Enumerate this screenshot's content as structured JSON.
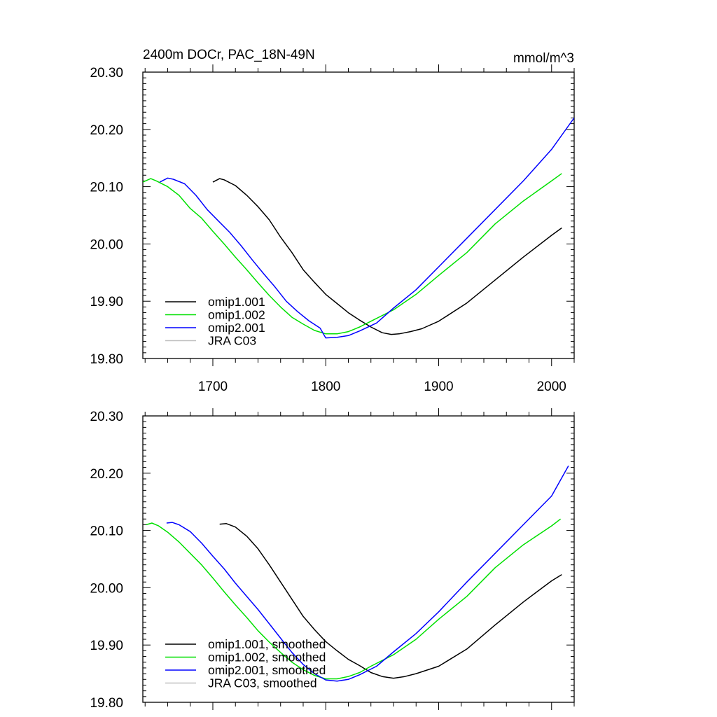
{
  "chart_data": [
    {
      "type": "line",
      "title": "2400m DOCr, PAC_18N-49N",
      "units": "mmol/m^3",
      "xlim": [
        1638,
        2020
      ],
      "ylim": [
        19.8,
        20.3
      ],
      "xticks": [
        1700,
        1800,
        1900,
        2000
      ],
      "xticks_labeled": true,
      "yticks": [
        19.8,
        19.9,
        20.0,
        20.1,
        20.2,
        20.3
      ],
      "ytick_labels": [
        "19.80",
        "19.90",
        "20.00",
        "20.10",
        "20.20",
        "20.30"
      ],
      "legend": [
        "omip1.001",
        "omip1.002",
        "omip2.001",
        "JRA C03"
      ],
      "series": [
        {
          "name": "omip1.001",
          "color": "#000000",
          "x": [
            1700,
            1706,
            1710,
            1720,
            1730,
            1740,
            1750,
            1760,
            1770,
            1780,
            1790,
            1800,
            1810,
            1820,
            1830,
            1840,
            1850,
            1858,
            1865,
            1875,
            1885,
            1900,
            1925,
            1950,
            1975,
            2000,
            2009
          ],
          "y": [
            20.108,
            20.114,
            20.112,
            20.102,
            20.085,
            20.065,
            20.042,
            20.012,
            19.985,
            19.955,
            19.933,
            19.912,
            19.896,
            19.88,
            19.867,
            19.855,
            19.845,
            19.842,
            19.843,
            19.847,
            19.852,
            19.865,
            19.897,
            19.937,
            19.977,
            20.015,
            20.028
          ]
        },
        {
          "name": "omip1.002",
          "color": "#00e000",
          "x": [
            1638,
            1645,
            1650,
            1660,
            1670,
            1680,
            1690,
            1700,
            1710,
            1720,
            1730,
            1740,
            1750,
            1760,
            1770,
            1780,
            1790,
            1800,
            1810,
            1820,
            1830,
            1840,
            1860,
            1880,
            1900,
            1925,
            1950,
            1975,
            2000,
            2009
          ],
          "y": [
            20.108,
            20.114,
            20.11,
            20.1,
            20.085,
            20.062,
            20.045,
            20.022,
            20.0,
            19.977,
            19.955,
            19.932,
            19.91,
            19.89,
            19.872,
            19.86,
            19.849,
            19.843,
            19.843,
            19.847,
            19.855,
            19.865,
            19.885,
            19.912,
            19.945,
            19.985,
            20.035,
            20.075,
            20.11,
            20.123
          ]
        },
        {
          "name": "omip2.001",
          "color": "#0000ff",
          "x": [
            1653,
            1660,
            1665,
            1675,
            1685,
            1695,
            1705,
            1715,
            1725,
            1735,
            1745,
            1755,
            1765,
            1775,
            1785,
            1795,
            1800,
            1810,
            1820,
            1830,
            1845,
            1860,
            1880,
            1900,
            1925,
            1950,
            1975,
            2000,
            2020
          ],
          "y": [
            20.108,
            20.115,
            20.113,
            20.105,
            20.085,
            20.06,
            20.04,
            20.02,
            19.997,
            19.972,
            19.948,
            19.925,
            19.9,
            19.882,
            19.866,
            19.853,
            19.836,
            19.837,
            19.84,
            19.848,
            19.862,
            19.888,
            19.92,
            19.96,
            20.01,
            20.06,
            20.11,
            20.165,
            20.22
          ]
        },
        {
          "name": "JRA C03",
          "color": "#c0c0c0",
          "x": [],
          "y": []
        }
      ]
    },
    {
      "type": "line",
      "title": "",
      "units": "",
      "xlim": [
        1638,
        2020
      ],
      "ylim": [
        19.8,
        20.3
      ],
      "xticks": [
        1700,
        1800,
        1900,
        2000
      ],
      "xticks_labeled": false,
      "yticks": [
        19.8,
        19.9,
        20.0,
        20.1,
        20.2,
        20.3
      ],
      "ytick_labels": [
        "19.80",
        "19.90",
        "20.00",
        "20.10",
        "20.20",
        "20.30"
      ],
      "legend": [
        "omip1.001, smoothed",
        "omip1.002, smoothed",
        "omip2.001, smoothed",
        "JRA C03, smoothed"
      ],
      "series": [
        {
          "name": "omip1.001, smoothed",
          "color": "#000000",
          "x": [
            1706,
            1712,
            1720,
            1730,
            1740,
            1750,
            1760,
            1770,
            1780,
            1790,
            1800,
            1810,
            1820,
            1830,
            1840,
            1850,
            1860,
            1870,
            1880,
            1900,
            1925,
            1950,
            1975,
            2000,
            2009
          ],
          "y": [
            20.111,
            20.112,
            20.106,
            20.09,
            20.068,
            20.04,
            20.01,
            19.98,
            19.95,
            19.927,
            19.906,
            19.89,
            19.875,
            19.864,
            19.852,
            19.845,
            19.842,
            19.845,
            19.85,
            19.863,
            19.893,
            19.935,
            19.975,
            20.012,
            20.023
          ]
        },
        {
          "name": "omip1.002, smoothed",
          "color": "#00e000",
          "x": [
            1641,
            1646,
            1652,
            1660,
            1670,
            1680,
            1690,
            1700,
            1710,
            1720,
            1730,
            1740,
            1750,
            1760,
            1770,
            1780,
            1790,
            1800,
            1810,
            1820,
            1830,
            1840,
            1860,
            1880,
            1900,
            1925,
            1950,
            1975,
            2000,
            2008
          ],
          "y": [
            20.11,
            20.113,
            20.108,
            20.097,
            20.08,
            20.06,
            20.04,
            20.017,
            19.993,
            19.97,
            19.948,
            19.925,
            19.905,
            19.887,
            19.87,
            19.857,
            19.847,
            19.841,
            19.841,
            19.845,
            19.852,
            19.863,
            19.883,
            19.91,
            19.945,
            19.985,
            20.035,
            20.075,
            20.108,
            20.12
          ]
        },
        {
          "name": "omip2.001, smoothed",
          "color": "#0000ff",
          "x": [
            1659,
            1664,
            1670,
            1680,
            1690,
            1700,
            1710,
            1720,
            1730,
            1740,
            1750,
            1760,
            1770,
            1780,
            1790,
            1800,
            1810,
            1820,
            1830,
            1845,
            1860,
            1880,
            1900,
            1925,
            1950,
            1975,
            2000,
            2015
          ],
          "y": [
            20.113,
            20.114,
            20.11,
            20.098,
            20.078,
            20.055,
            20.033,
            20.008,
            19.985,
            19.962,
            19.937,
            19.912,
            19.887,
            19.866,
            19.85,
            19.839,
            19.837,
            19.84,
            19.848,
            19.863,
            19.888,
            19.92,
            19.958,
            20.01,
            20.06,
            20.11,
            20.16,
            20.213
          ]
        },
        {
          "name": "JRA C03, smoothed",
          "color": "#c0c0c0",
          "x": [],
          "y": []
        }
      ]
    }
  ]
}
